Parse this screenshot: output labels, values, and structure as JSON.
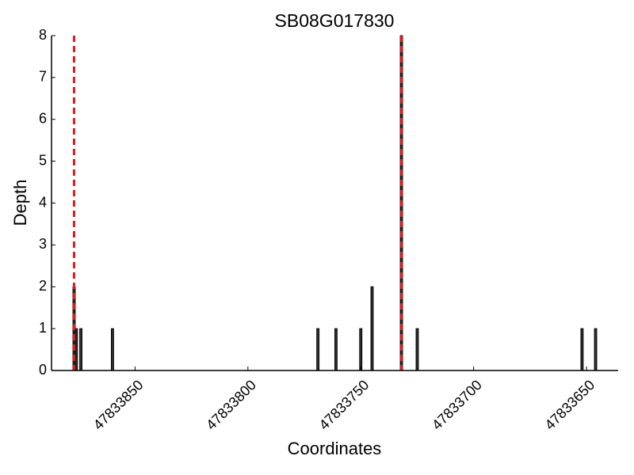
{
  "chart_data": {
    "type": "bar",
    "title": "SB08G017830",
    "x_label": "Coordinates",
    "y_label": "Depth",
    "x": [
      47833877,
      47833876,
      47833874,
      47833860,
      47833769,
      47833761,
      47833750,
      47833745,
      47833732,
      47833725,
      47833652,
      47833646
    ],
    "values": [
      2,
      1,
      1,
      1,
      1,
      1,
      1,
      2,
      8,
      1,
      1,
      1
    ],
    "color": "#333333",
    "vlines": [
      47833877,
      47833732
    ],
    "vline_color": "#e31a1c",
    "xlim": [
      47833887,
      47833636
    ],
    "xticks": [
      47833850,
      47833800,
      47833750,
      47833700,
      47833650
    ],
    "ylim": [
      0,
      8
    ],
    "yticks": [
      0,
      1,
      2,
      3,
      4,
      5,
      6,
      7,
      8
    ]
  }
}
